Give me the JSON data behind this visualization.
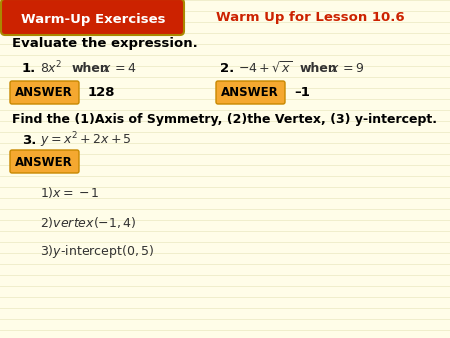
{
  "bg_color": "#fffde8",
  "stripe_color": "#f0eecc",
  "header_bg": "#cc2200",
  "header_border": "#aa8800",
  "header_text": "Warm-Up Exercises",
  "header_text_color": "#ffffff",
  "subtitle": "Warm Up for Lesson 10.6",
  "subtitle_color": "#cc2200",
  "section1_label": "Evaluate the expression.",
  "answer_box_color": "#f5a830",
  "answer_box_border": "#c88800",
  "answer_label": "ANSWER",
  "ans1": "128",
  "ans2": "–1",
  "section2_label": "Find the (1)Axis of Symmetry, (2)the Vertex, (3) y-intercept.",
  "ans3_line1": "1)x = −1",
  "ans3_line2": "2)vertex(−1, 4)",
  "ans3_line3": "3) y-intercept (0, 5)"
}
